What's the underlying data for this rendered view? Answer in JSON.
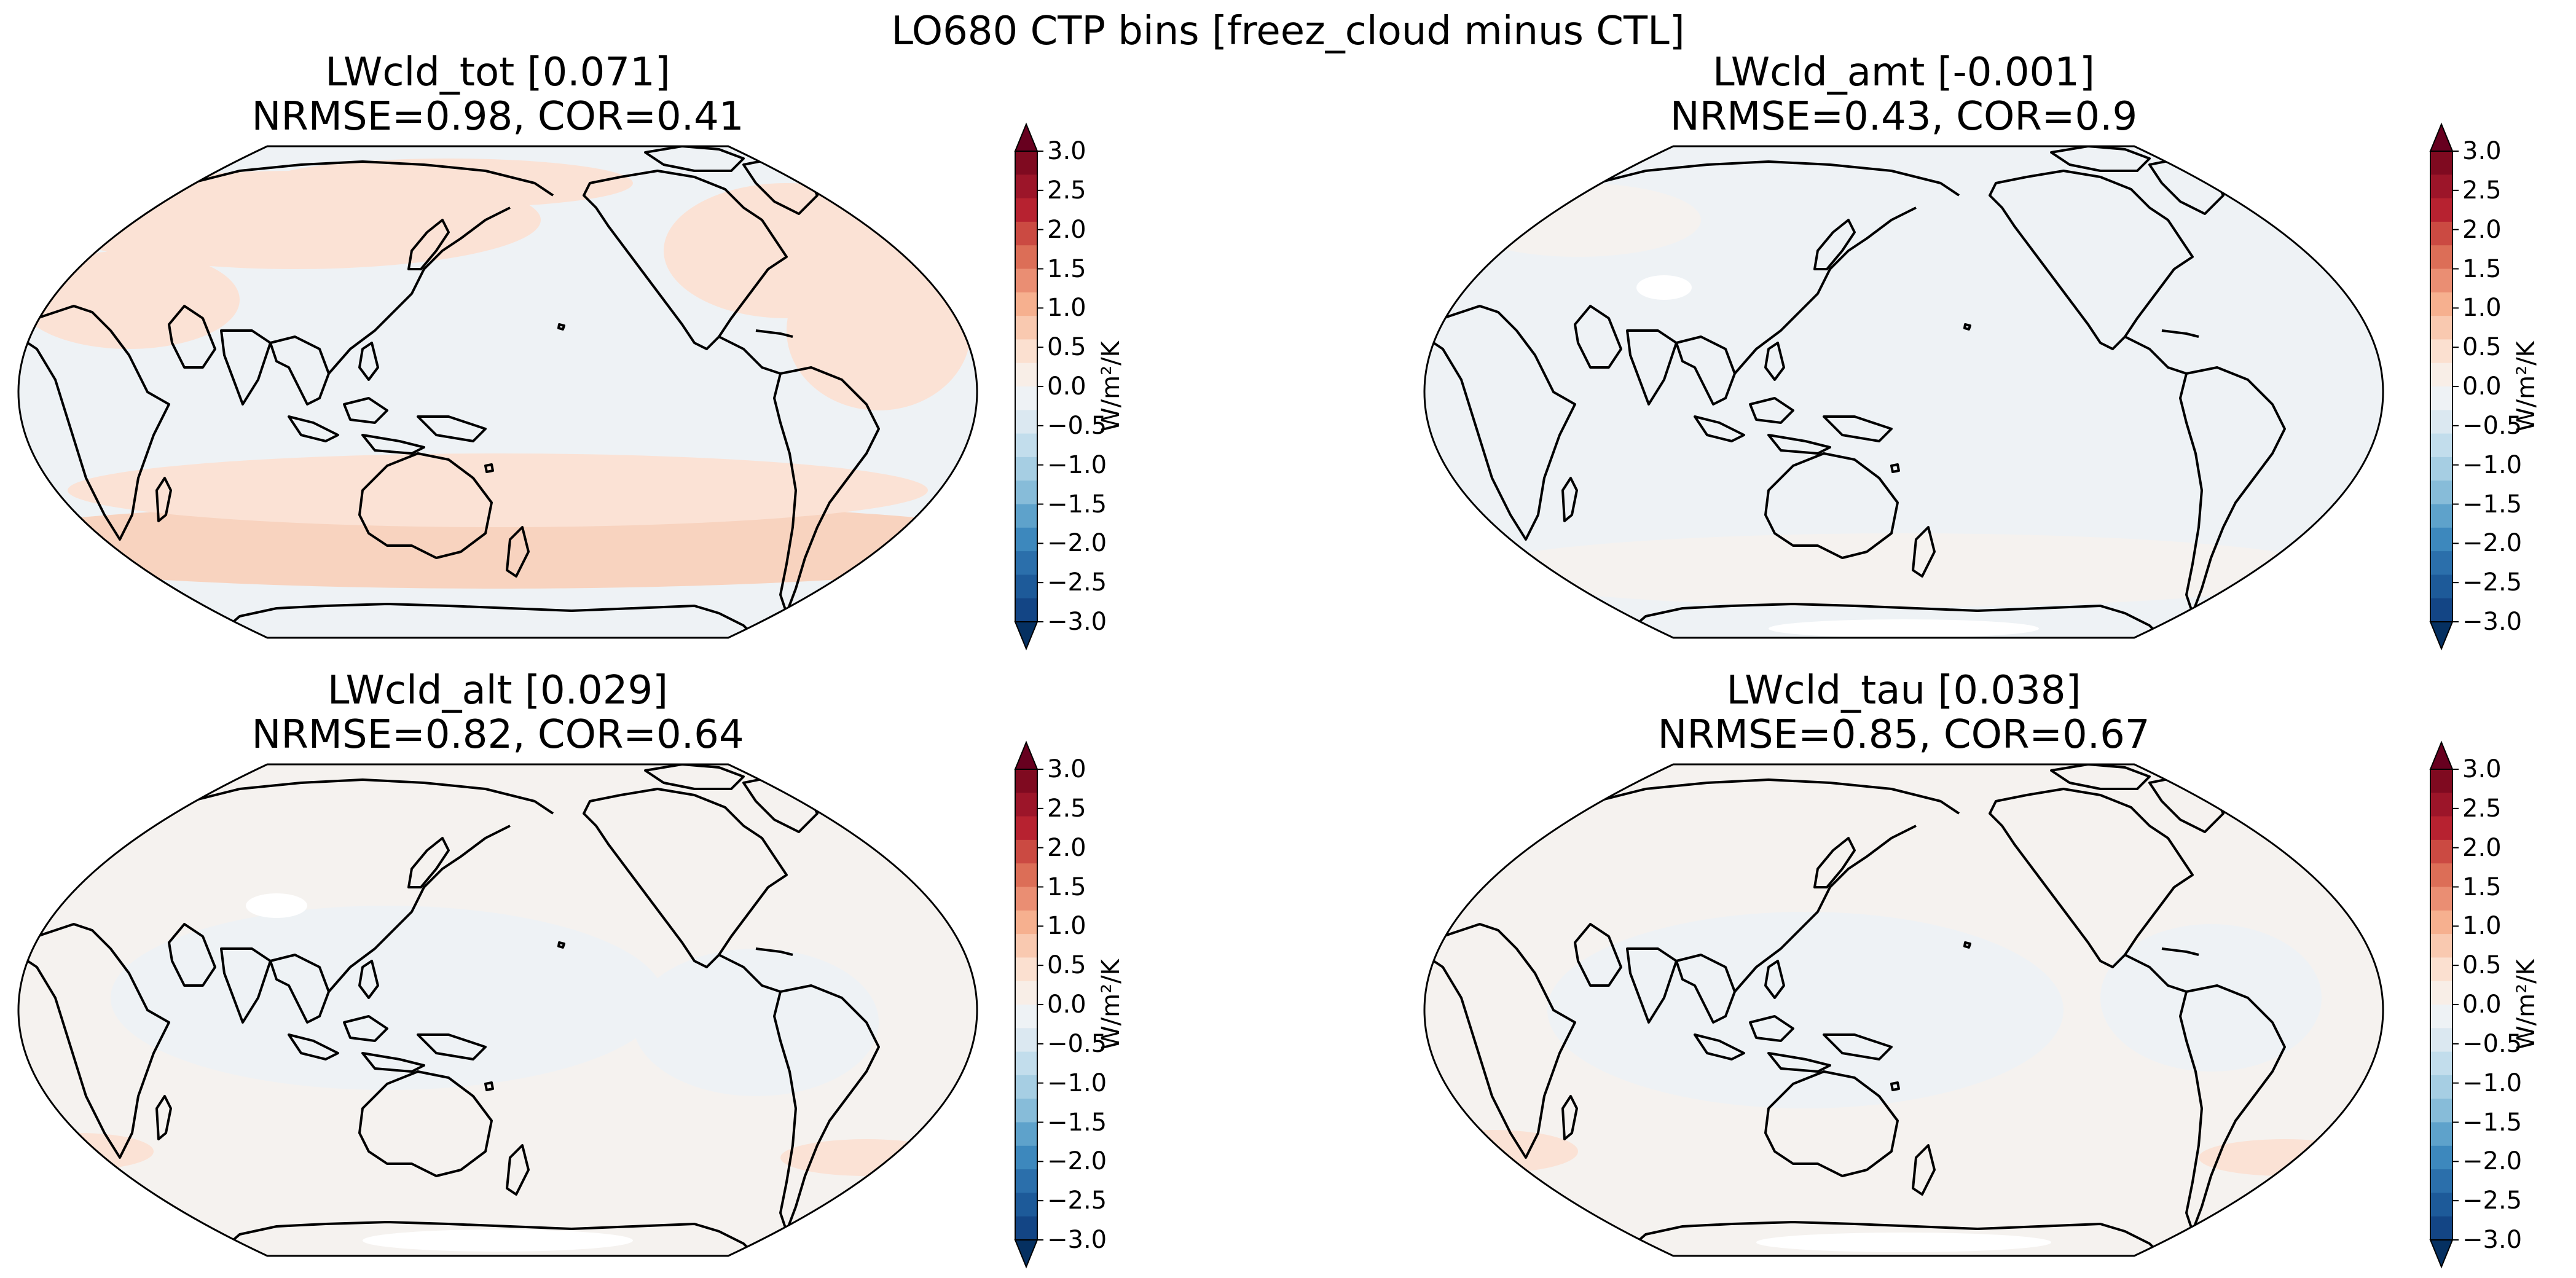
{
  "figure": {
    "title": "LO680 CTP bins [freez_cloud minus CTL]"
  },
  "panels": [
    {
      "name": "LWcld_tot",
      "mean": "[0.071]",
      "title_line1": "LWcld_tot [0.071]",
      "title_line2": "NRMSE=0.98, COR=0.41",
      "pattern": "tot"
    },
    {
      "name": "LWcld_amt",
      "mean": "[-0.001]",
      "title_line1": "LWcld_amt [-0.001]",
      "title_line2": "NRMSE=0.43, COR=0.9",
      "pattern": "amt"
    },
    {
      "name": "LWcld_alt",
      "mean": "[0.029]",
      "title_line1": "LWcld_alt [0.029]",
      "title_line2": "NRMSE=0.82, COR=0.64",
      "pattern": "alt"
    },
    {
      "name": "LWcld_tau",
      "mean": "[0.038]",
      "title_line1": "LWcld_tau [0.038]",
      "title_line2": "NRMSE=0.85, COR=0.67",
      "pattern": "tau"
    }
  ],
  "colorbar": {
    "ticks": [
      "3.0",
      "2.5",
      "2.0",
      "1.5",
      "1.0",
      "0.5",
      "0.0",
      "−0.5",
      "−1.0",
      "−1.5",
      "−2.0",
      "−2.5",
      "−3.0"
    ],
    "unit": "W/m²/K",
    "colors_top_to_bottom": [
      "#7f0a20",
      "#9c1529",
      "#b72230",
      "#cb4a42",
      "#dc6e57",
      "#ea8e73",
      "#f6b08f",
      "#f9c9b0",
      "#fbe0d0",
      "#f8eee7",
      "#eef2f5",
      "#dbe8f1",
      "#c2ddec",
      "#a6cee3",
      "#87bcd9",
      "#5ea2cb",
      "#3d88bd",
      "#2b6fab",
      "#1d5a99",
      "#134585"
    ],
    "over_color": "#67001f",
    "under_color": "#053061"
  },
  "map_colors": {
    "ocean_neutral": "#f5f2ef",
    "light_red": "#fbe2d5",
    "red": "#f8d3bf",
    "light_blue": "#eef2f5",
    "white": "#ffffff"
  }
}
